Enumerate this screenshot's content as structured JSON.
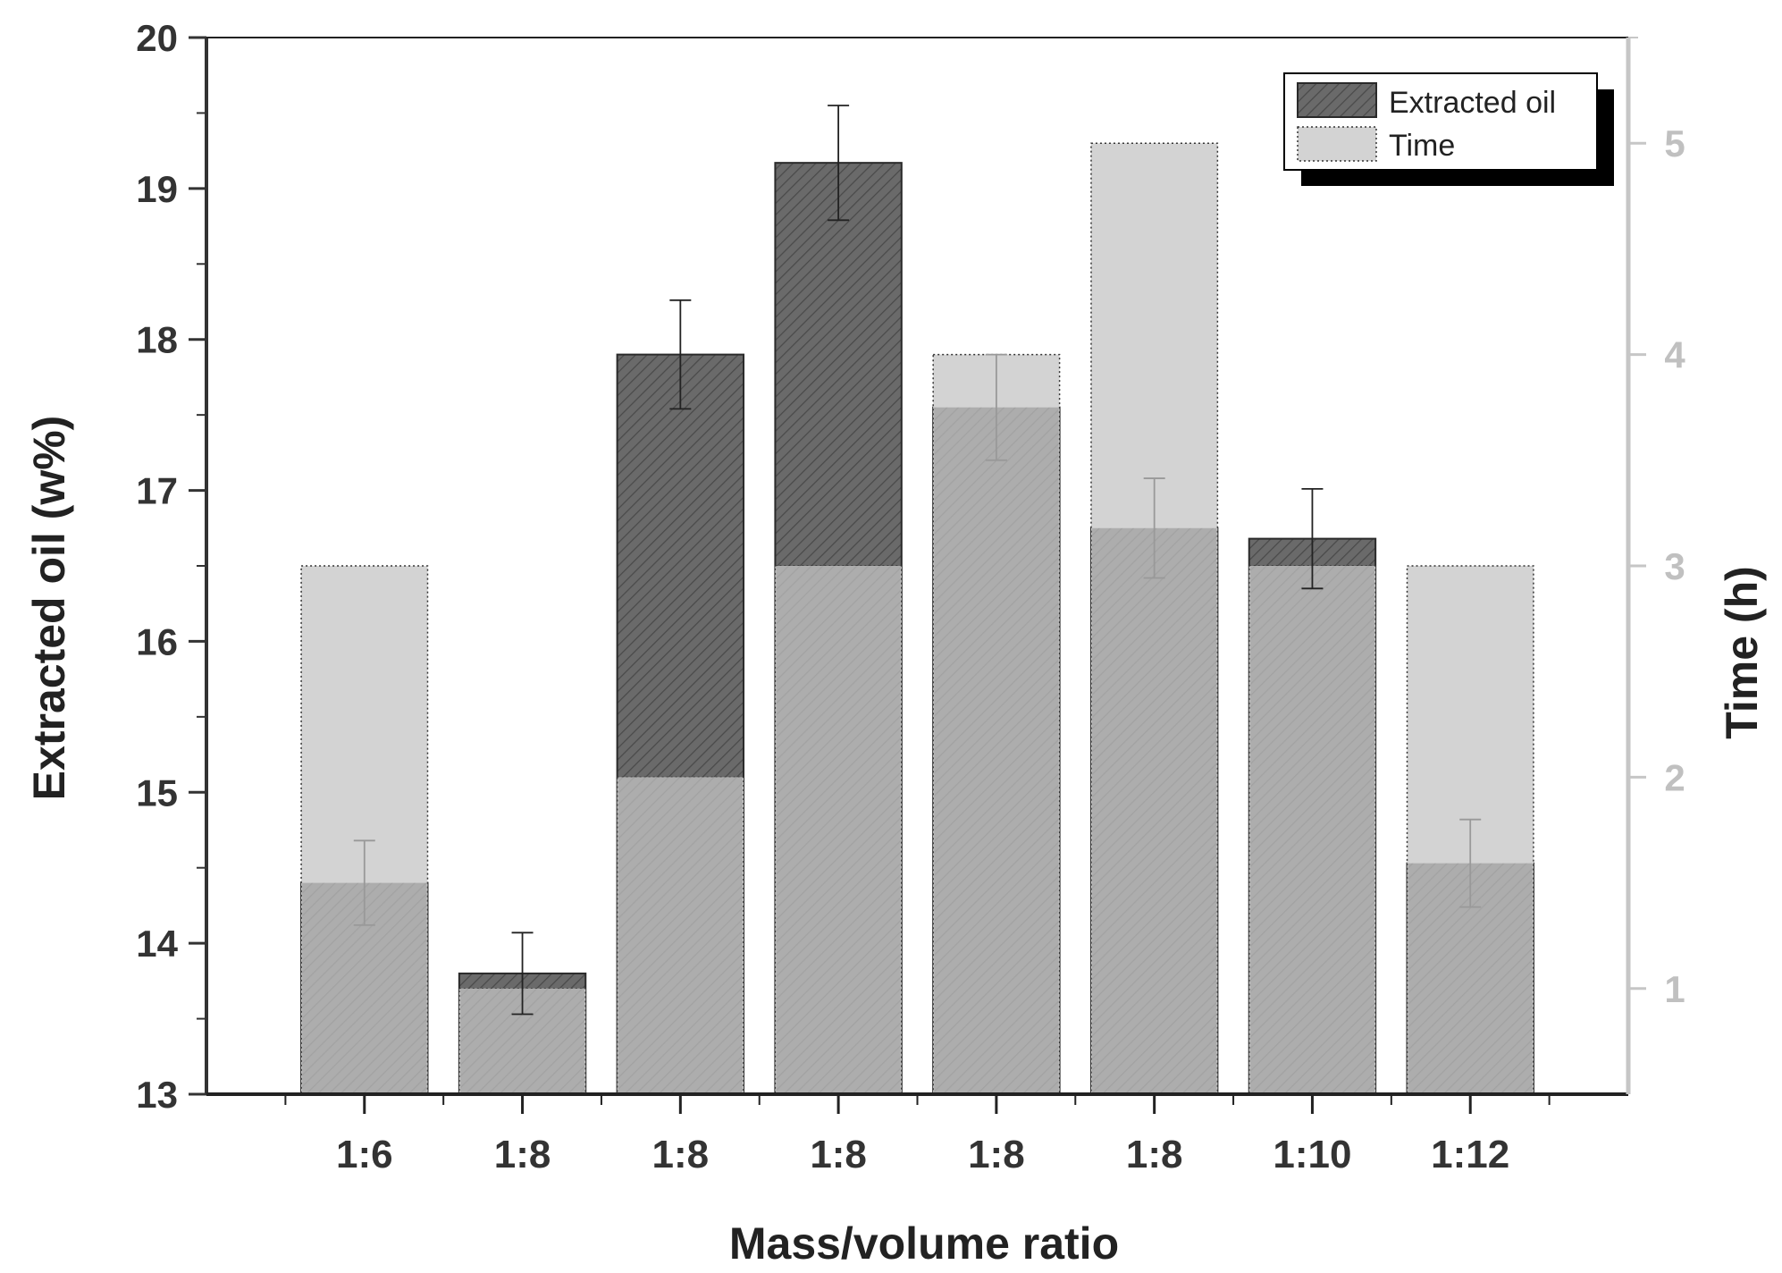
{
  "chart_data": {
    "type": "bar",
    "title": "",
    "xlabel": "Mass/volume ratio",
    "ylabel": "Extracted oil (w%)",
    "y2label": "Time (h)",
    "categories": [
      "1:6",
      "1:8",
      "1:8",
      "1:8",
      "1:8",
      "1:8",
      "1:10",
      "1:12"
    ],
    "ylim": [
      13,
      20
    ],
    "y2lim": [
      0.5,
      5.5
    ],
    "yticks": [
      "13",
      "14",
      "15",
      "16",
      "17",
      "18",
      "19",
      "20"
    ],
    "y2ticks": [
      "1",
      "2",
      "3",
      "4",
      "5"
    ],
    "series": [
      {
        "name": "Extracted oil",
        "axis": "left",
        "values": [
          14.4,
          13.8,
          17.9,
          19.17,
          17.55,
          16.75,
          16.68,
          14.53
        ],
        "errors": [
          0.28,
          0.27,
          0.36,
          0.38,
          0.35,
          0.33,
          0.33,
          0.29
        ],
        "color": "#6a6a6a"
      },
      {
        "name": "Time",
        "axis": "right",
        "values": [
          3,
          1,
          2,
          3,
          4,
          5,
          3,
          3
        ],
        "color": "#d3d3d3"
      }
    ],
    "legend_position": "top-right",
    "grid": false
  },
  "colors": {
    "axis_left": "#333333",
    "axis_right": "#c6c6c6",
    "oil_fill": "#6a6a6a",
    "time_fill": "#d3d3d3",
    "overlap_fill": "#adadad"
  }
}
